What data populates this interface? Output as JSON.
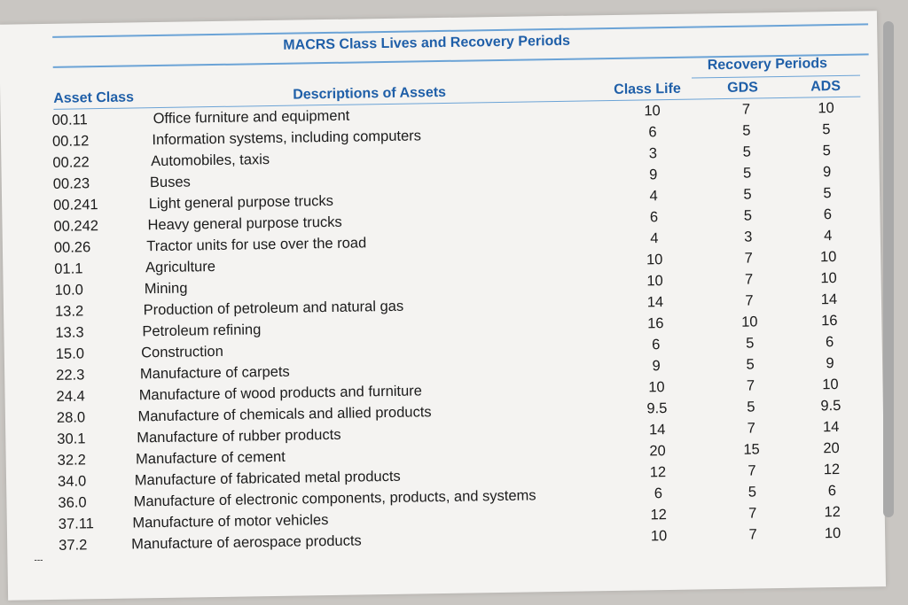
{
  "table": {
    "title": "MACRS Class Lives and Recovery Periods",
    "headers": {
      "asset_class": "Asset Class",
      "descriptions": "Descriptions of Assets",
      "class_life": "Class Life",
      "recovery_periods": "Recovery Periods",
      "gds": "GDS",
      "ads": "ADS"
    },
    "rows": [
      {
        "asset_class": "00.11",
        "description": "Office furniture and equipment",
        "class_life": "10",
        "gds": "7",
        "ads": "10"
      },
      {
        "asset_class": "00.12",
        "description": "Information systems, including computers",
        "class_life": "6",
        "gds": "5",
        "ads": "5"
      },
      {
        "asset_class": "00.22",
        "description": "Automobiles, taxis",
        "class_life": "3",
        "gds": "5",
        "ads": "5"
      },
      {
        "asset_class": "00.23",
        "description": "Buses",
        "class_life": "9",
        "gds": "5",
        "ads": "9"
      },
      {
        "asset_class": "00.241",
        "description": "Light general purpose trucks",
        "class_life": "4",
        "gds": "5",
        "ads": "5"
      },
      {
        "asset_class": "00.242",
        "description": "Heavy general purpose trucks",
        "class_life": "6",
        "gds": "5",
        "ads": "6"
      },
      {
        "asset_class": "00.26",
        "description": "Tractor units for use over the road",
        "class_life": "4",
        "gds": "3",
        "ads": "4"
      },
      {
        "asset_class": "01.1",
        "description": "Agriculture",
        "class_life": "10",
        "gds": "7",
        "ads": "10"
      },
      {
        "asset_class": "10.0",
        "description": "Mining",
        "class_life": "10",
        "gds": "7",
        "ads": "10"
      },
      {
        "asset_class": "13.2",
        "description": "Production of petroleum and natural gas",
        "class_life": "14",
        "gds": "7",
        "ads": "14"
      },
      {
        "asset_class": "13.3",
        "description": "Petroleum refining",
        "class_life": "16",
        "gds": "10",
        "ads": "16"
      },
      {
        "asset_class": "15.0",
        "description": "Construction",
        "class_life": "6",
        "gds": "5",
        "ads": "6"
      },
      {
        "asset_class": "22.3",
        "description": "Manufacture of carpets",
        "class_life": "9",
        "gds": "5",
        "ads": "9"
      },
      {
        "asset_class": "24.4",
        "description": "Manufacture of wood products and furniture",
        "class_life": "10",
        "gds": "7",
        "ads": "10"
      },
      {
        "asset_class": "28.0",
        "description": "Manufacture of chemicals and allied products",
        "class_life": "9.5",
        "gds": "5",
        "ads": "9.5"
      },
      {
        "asset_class": "30.1",
        "description": "Manufacture of rubber products",
        "class_life": "14",
        "gds": "7",
        "ads": "14"
      },
      {
        "asset_class": "32.2",
        "description": "Manufacture of cement",
        "class_life": "20",
        "gds": "15",
        "ads": "20"
      },
      {
        "asset_class": "34.0",
        "description": "Manufacture of fabricated metal products",
        "class_life": "12",
        "gds": "7",
        "ads": "12"
      },
      {
        "asset_class": "36.0",
        "description": "Manufacture of electronic components, products, and systems",
        "class_life": "6",
        "gds": "5",
        "ads": "6"
      },
      {
        "asset_class": "37.11",
        "description": "Manufacture of motor vehicles",
        "class_life": "12",
        "gds": "7",
        "ads": "12"
      },
      {
        "asset_class": "37.2",
        "description": "Manufacture of aerospace products",
        "class_life": "10",
        "gds": "7",
        "ads": "10"
      }
    ]
  },
  "colors": {
    "header_blue": "#1f5fa8",
    "rule_blue": "#6ba3d6",
    "paper": "#f4f3f1"
  }
}
